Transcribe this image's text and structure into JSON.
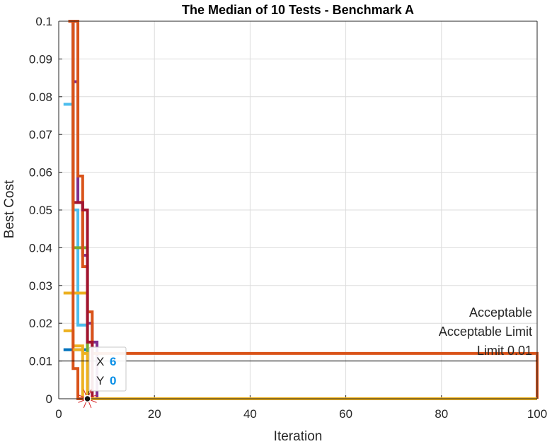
{
  "chart_data": {
    "type": "line",
    "title": "The Median of 10 Tests - Benchmark A",
    "xlabel": "Iteration",
    "ylabel": "Best Cost",
    "xlim": [
      0,
      100
    ],
    "ylim": [
      0,
      0.1
    ],
    "x_ticks": [
      "0",
      "20",
      "40",
      "60",
      "80",
      "100"
    ],
    "y_ticks": [
      "0",
      "0.01",
      "0.02",
      "0.03",
      "0.04",
      "0.05",
      "0.06",
      "0.07",
      "0.08",
      "0.09",
      "0.1"
    ],
    "grid": true,
    "reference_line": {
      "y": 0.01,
      "label_lines": [
        "Acceptable",
        "Limit",
        "0.01"
      ],
      "color": "#000000"
    },
    "annotation_lines": [
      "Acceptable",
      "Acceptable Limit",
      "Limit 0.01"
    ],
    "datatip": {
      "x_label": "X",
      "x_value": "6",
      "y_label": "Y",
      "y_value": "0",
      "x": 6,
      "y": 0
    },
    "series": [
      {
        "color": "#0072BD",
        "x": [
          1,
          3,
          4,
          5,
          6,
          100
        ],
        "y": [
          0.013,
          0.013,
          0.013,
          0.013,
          0,
          0
        ]
      },
      {
        "color": "#4DBEEE",
        "x": [
          1,
          2,
          3,
          4,
          5,
          6,
          100
        ],
        "y": [
          0.078,
          0.078,
          0.05,
          0.0195,
          0.0195,
          0,
          0
        ]
      },
      {
        "color": "#EDB120",
        "x": [
          1,
          2,
          3,
          4,
          5,
          6,
          100
        ],
        "y": [
          0.028,
          0.028,
          0.028,
          0.028,
          0.028,
          0,
          0
        ]
      },
      {
        "color": "#EDB120",
        "x": [
          1,
          2,
          3,
          4,
          5,
          100
        ],
        "y": [
          0.018,
          0.018,
          0.014,
          0.014,
          0,
          0
        ]
      },
      {
        "color": "#77AC30",
        "x": [
          2,
          3,
          4,
          5,
          6,
          100
        ],
        "y": [
          0.1,
          0.04,
          0.04,
          0.04,
          0,
          0
        ]
      },
      {
        "color": "#7E2F8E",
        "x": [
          2,
          3,
          4,
          5,
          6,
          7,
          8,
          100
        ],
        "y": [
          0.1,
          0.084,
          0.052,
          0.038,
          0.02,
          0.015,
          0,
          0
        ]
      },
      {
        "color": "#D95319",
        "x": [
          2,
          3,
          4,
          5,
          6,
          7,
          100
        ],
        "y": [
          0.1,
          0.1,
          0.059,
          0.035,
          0.023,
          0.012,
          0
        ]
      },
      {
        "color": "#A2142F",
        "x": [
          2,
          3,
          4,
          5,
          6,
          7,
          100
        ],
        "y": [
          0.1,
          0.052,
          0.052,
          0.05,
          0.015,
          0,
          0
        ]
      },
      {
        "color": "#D95319",
        "x": [
          2,
          3,
          4,
          5,
          100
        ],
        "y": [
          0.1,
          0.008,
          0,
          0,
          0
        ]
      },
      {
        "color": "#EDB120",
        "x": [
          3,
          4,
          5,
          6,
          7,
          100
        ],
        "y": [
          0.013,
          0.013,
          0.012,
          0,
          0,
          0
        ]
      }
    ]
  }
}
